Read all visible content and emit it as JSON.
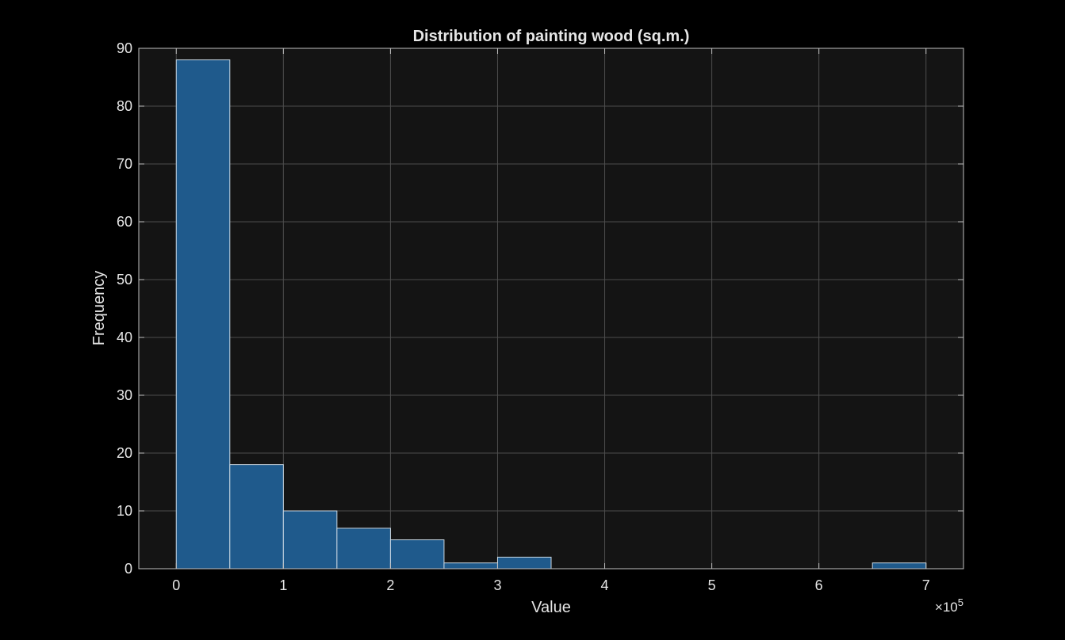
{
  "chart_data": {
    "type": "bar",
    "title": "Distribution of painting wood (sq.m.)",
    "xlabel": "Value",
    "ylabel": "Frequency",
    "x_exponent_label": "×10",
    "x_exponent_power": "5",
    "bin_width": 50000,
    "bin_starts": [
      0,
      50000,
      100000,
      150000,
      200000,
      250000,
      300000,
      350000,
      400000,
      450000,
      500000,
      550000,
      600000,
      650000
    ],
    "values": [
      88,
      18,
      10,
      7,
      5,
      1,
      2,
      0,
      0,
      0,
      0,
      0,
      0,
      1
    ],
    "xlim": [
      -35000,
      735000
    ],
    "ylim": [
      0,
      90
    ],
    "x_ticks": [
      0,
      100000,
      200000,
      300000,
      400000,
      500000,
      600000,
      700000
    ],
    "x_tick_labels": [
      "0",
      "1",
      "2",
      "3",
      "4",
      "5",
      "6",
      "7"
    ],
    "y_ticks": [
      0,
      10,
      20,
      30,
      40,
      50,
      60,
      70,
      80,
      90
    ],
    "y_tick_labels": [
      "0",
      "10",
      "20",
      "30",
      "40",
      "50",
      "60",
      "70",
      "80",
      "90"
    ],
    "grid": true,
    "colors": {
      "figure_background": "#000000",
      "axes_background": "#141414",
      "bar_fill": "#1f5a8c",
      "bar_edge": "#c8d6e2",
      "grid": "#4d4d4d",
      "axes_frame": "#bfbfbf",
      "text": "#e6e6e6"
    }
  }
}
